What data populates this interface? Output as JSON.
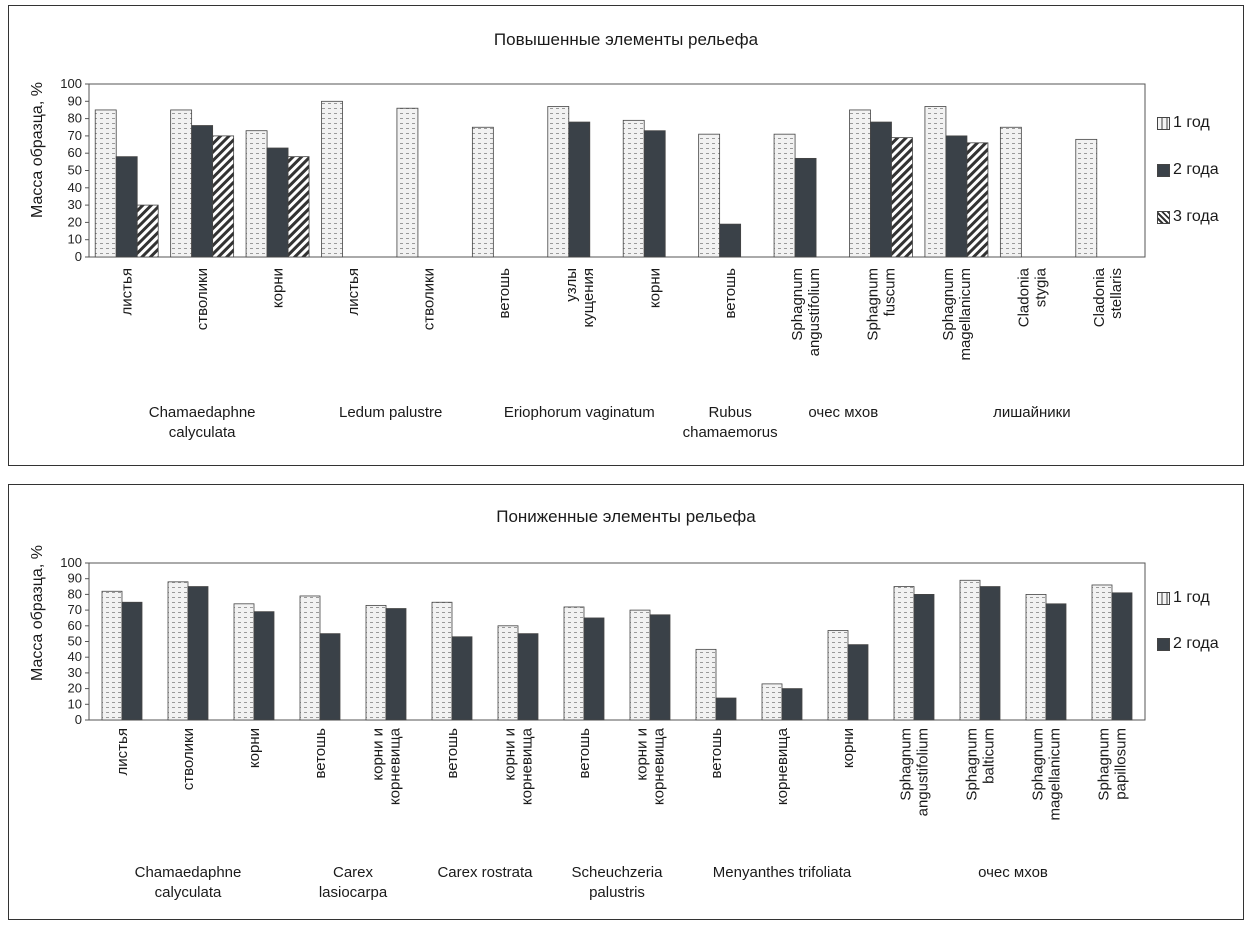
{
  "chart_data": [
    {
      "type": "bar",
      "title": "Повышенные элементы рельефа",
      "ylabel": "Масса образца, %",
      "xlabel": "",
      "ylim": [
        0,
        100
      ],
      "yticks": [
        0,
        10,
        20,
        30,
        40,
        50,
        60,
        70,
        80,
        90,
        100
      ],
      "legend_position": "right",
      "series": [
        {
          "name": "1 год",
          "values": [
            85,
            85,
            73,
            90,
            86,
            75,
            87,
            79,
            71,
            71,
            85,
            87,
            75,
            68
          ]
        },
        {
          "name": "2 года",
          "values": [
            58,
            76,
            63,
            null,
            null,
            null,
            78,
            73,
            19,
            57,
            78,
            70,
            null,
            null
          ]
        },
        {
          "name": "3 года",
          "values": [
            30,
            70,
            58,
            null,
            null,
            null,
            null,
            null,
            null,
            null,
            69,
            66,
            null,
            null
          ]
        }
      ],
      "categories": [
        [
          "листья"
        ],
        [
          "стволики"
        ],
        [
          "корни"
        ],
        [
          "листья"
        ],
        [
          "стволики"
        ],
        [
          "ветошь"
        ],
        [
          "узлы",
          "кущения"
        ],
        [
          "корни"
        ],
        [
          "ветошь"
        ],
        [
          "Sphagnum",
          "angustifolium"
        ],
        [
          "Sphagnum",
          "fuscum"
        ],
        [
          "Sphagnum",
          "magellanicum"
        ],
        [
          "Cladonia",
          "stygia"
        ],
        [
          "Cladonia",
          "stellaris"
        ]
      ],
      "groups": [
        {
          "label": [
            "Chamaedaphne",
            "calyculata"
          ],
          "start": 0,
          "end": 2
        },
        {
          "label": [
            "Ledum palustre"
          ],
          "start": 3,
          "end": 4
        },
        {
          "label": [
            "Eriophorum vaginatum"
          ],
          "start": 5,
          "end": 7
        },
        {
          "label": [
            "Rubus",
            "chamaemorus"
          ],
          "start": 8,
          "end": 8
        },
        {
          "label": [
            "очес мхов"
          ],
          "start": 9,
          "end": 10
        },
        {
          "label": [
            "лишайники"
          ],
          "start": 11,
          "end": 13
        }
      ]
    },
    {
      "type": "bar",
      "title": "Пониженные элементы рельефа",
      "ylabel": "Масса образца, %",
      "xlabel": "",
      "ylim": [
        0,
        100
      ],
      "yticks": [
        0,
        10,
        20,
        30,
        40,
        50,
        60,
        70,
        80,
        90,
        100
      ],
      "legend_position": "right",
      "series": [
        {
          "name": "1 год",
          "values": [
            82,
            88,
            74,
            79,
            73,
            75,
            60,
            72,
            70,
            45,
            23,
            57,
            85,
            89,
            80,
            86
          ]
        },
        {
          "name": "2 года",
          "values": [
            75,
            85,
            69,
            55,
            71,
            53,
            55,
            65,
            67,
            14,
            20,
            48,
            80,
            85,
            74,
            81
          ]
        }
      ],
      "categories": [
        [
          "листья"
        ],
        [
          "стволики"
        ],
        [
          "корни"
        ],
        [
          "ветошь"
        ],
        [
          "корни и",
          "корневища"
        ],
        [
          "ветошь"
        ],
        [
          "корни и",
          "корневища"
        ],
        [
          "ветошь"
        ],
        [
          "корни и",
          "корневища"
        ],
        [
          "ветошь"
        ],
        [
          "корневища"
        ],
        [
          "корни"
        ],
        [
          "Sphagnum",
          "angustifolium"
        ],
        [
          "Sphagnum",
          "balticum"
        ],
        [
          "Sphagnum",
          "magellanicum"
        ],
        [
          "Sphagnum",
          "papillosum"
        ]
      ],
      "groups": [
        {
          "label": [
            "Chamaedaphne",
            "calyculata"
          ],
          "start": 0,
          "end": 2
        },
        {
          "label": [
            "Carex",
            "lasiocarpa"
          ],
          "start": 3,
          "end": 4
        },
        {
          "label": [
            "Carex rostrata"
          ],
          "start": 5,
          "end": 6
        },
        {
          "label": [
            "Scheuchzeria",
            "palustris"
          ],
          "start": 7,
          "end": 8
        },
        {
          "label": [
            "Menyanthes trifoliata"
          ],
          "start": 9,
          "end": 11
        },
        {
          "label": [
            "очес мхов"
          ],
          "start": 12,
          "end": 15
        }
      ]
    }
  ]
}
